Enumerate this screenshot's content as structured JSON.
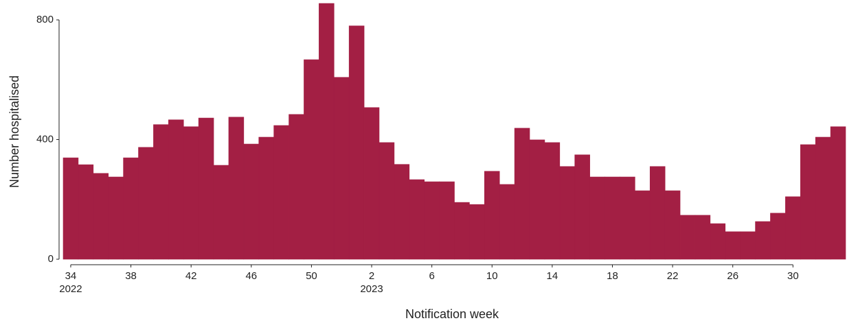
{
  "chart_data": {
    "type": "bar",
    "x_label": "Notification week",
    "y_label": "Number hospitalised",
    "categories": [
      "34",
      null,
      null,
      null,
      "38",
      null,
      null,
      null,
      "42",
      null,
      null,
      null,
      "46",
      null,
      null,
      null,
      "50",
      null,
      null,
      null,
      "2",
      null,
      null,
      null,
      "6",
      null,
      null,
      null,
      "10",
      null,
      null,
      null,
      "14",
      null,
      null,
      null,
      "18",
      null,
      null,
      null,
      "22",
      null,
      null,
      null,
      "26",
      null,
      null,
      null,
      "30",
      null,
      null,
      null
    ],
    "year_labels": [
      "2022",
      null,
      null,
      null,
      null,
      null,
      null,
      null,
      null,
      null,
      null,
      null,
      null,
      null,
      null,
      null,
      null,
      null,
      null,
      null,
      "2023",
      null,
      null,
      null,
      null,
      null,
      null,
      null,
      null,
      null,
      null,
      null,
      null,
      null,
      null,
      null,
      null,
      null,
      null,
      null,
      null,
      null,
      null,
      null,
      null,
      null,
      null,
      null,
      null,
      null,
      null,
      null
    ],
    "values": [
      339,
      316,
      287,
      275,
      339,
      374,
      450,
      466,
      443,
      472,
      314,
      475,
      385,
      408,
      447,
      484,
      667,
      855,
      608,
      780,
      507,
      390,
      317,
      266,
      259,
      259,
      190,
      183,
      294,
      250,
      438,
      399,
      390,
      310,
      349,
      275,
      275,
      275,
      229,
      310,
      229,
      147,
      147,
      119,
      92,
      92,
      126,
      154,
      209,
      383,
      408,
      443
    ],
    "color": "#a31f44",
    "ylim": [
      0,
      855
    ],
    "yticks": [
      0,
      400,
      800
    ]
  }
}
